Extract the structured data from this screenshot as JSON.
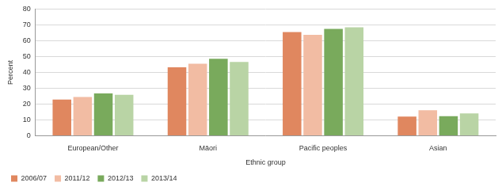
{
  "chart_data": {
    "type": "bar",
    "xlabel": "Ethnic group",
    "ylabel": "Percent",
    "categories": [
      "European/Other",
      "Māori",
      "Pacific peoples",
      "Asian"
    ],
    "series": [
      {
        "name": "2006/07",
        "color": "#e0875f",
        "values": [
          22.8,
          43.2,
          65.4,
          12.1
        ]
      },
      {
        "name": "2011/12",
        "color": "#f2bca3",
        "values": [
          24.5,
          45.5,
          63.7,
          16.1
        ]
      },
      {
        "name": "2012/13",
        "color": "#79aa5c",
        "values": [
          26.7,
          48.6,
          67.5,
          12.3
        ]
      },
      {
        "name": "2013/14",
        "color": "#b9d4a5",
        "values": [
          25.8,
          46.6,
          68.5,
          14.1
        ]
      }
    ],
    "ylim": [
      0,
      80
    ],
    "yticks": [
      0,
      10,
      20,
      30,
      40,
      50,
      60,
      70,
      80
    ],
    "grid": true,
    "legend": "bottom"
  }
}
